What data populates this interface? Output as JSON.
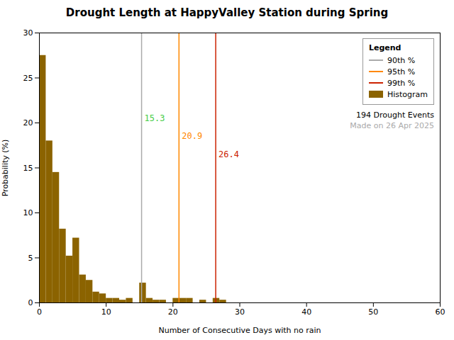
{
  "chart_data": {
    "type": "histogram",
    "title": "Drought Length at HappyValley Station during Spring",
    "xlabel": "Number of Consecutive Days with no rain",
    "ylabel": "Probability (%)",
    "bins": [
      0,
      1,
      2,
      3,
      4,
      5,
      6,
      7,
      8,
      9,
      10,
      11,
      12,
      13,
      14,
      15,
      16,
      17,
      18,
      19,
      20,
      21,
      22,
      23,
      24,
      25,
      26,
      27,
      28,
      29,
      30,
      31,
      32,
      33,
      34,
      35,
      36,
      37,
      38,
      39,
      40,
      41,
      42,
      43,
      44,
      45,
      46,
      47,
      48,
      49,
      50,
      51,
      52,
      53,
      54,
      55,
      56,
      57,
      58,
      59,
      60
    ],
    "values": [
      27.5,
      18.0,
      14.5,
      8.2,
      5.2,
      7.2,
      3.1,
      2.5,
      1.2,
      1.0,
      0.5,
      0.5,
      0.3,
      0.5,
      0.0,
      2.2,
      0.5,
      0.3,
      0.3,
      0.0,
      0.5,
      0.5,
      0.5,
      0.0,
      0.3,
      0.0,
      0.5,
      0.3,
      0.0,
      0.0,
      0.0,
      0.0,
      0.0,
      0.0,
      0.0,
      0.0,
      0.0,
      0.0,
      0.0,
      0.0,
      0.0,
      0.0,
      0.0,
      0.0,
      0.0,
      0.0,
      0.0,
      0.0,
      0.0,
      0.0,
      0.0,
      0.0,
      0.0,
      0.0,
      0.0,
      0.0,
      0.0,
      0.0,
      0.0,
      0.0
    ],
    "name": "Histogram",
    "color": "#8B6300",
    "vlines": [
      {
        "name": "90th %",
        "x": 15.3,
        "color": "#aaaaaa",
        "label_color": "#44cc44"
      },
      {
        "name": "95th %",
        "x": 20.9,
        "color": "#ff8800",
        "label_color": "#ff8800"
      },
      {
        "name": "99th %",
        "x": 26.4,
        "color": "#cc2200",
        "label_color": "#cc2200"
      }
    ],
    "legend": "upper right",
    "legend_title": "Legend",
    "annotations": [
      {
        "text": "194 Drought Events",
        "color": "#000000"
      },
      {
        "text": "Made on 26 Apr 2025",
        "color": "#aaaaaa"
      }
    ],
    "xlim": [
      0,
      60
    ],
    "ylim": [
      0,
      30
    ],
    "xticks": [
      0,
      10,
      20,
      30,
      40,
      50,
      60
    ],
    "yticks": [
      0,
      5,
      10,
      15,
      20,
      25,
      30
    ],
    "grid": false
  }
}
